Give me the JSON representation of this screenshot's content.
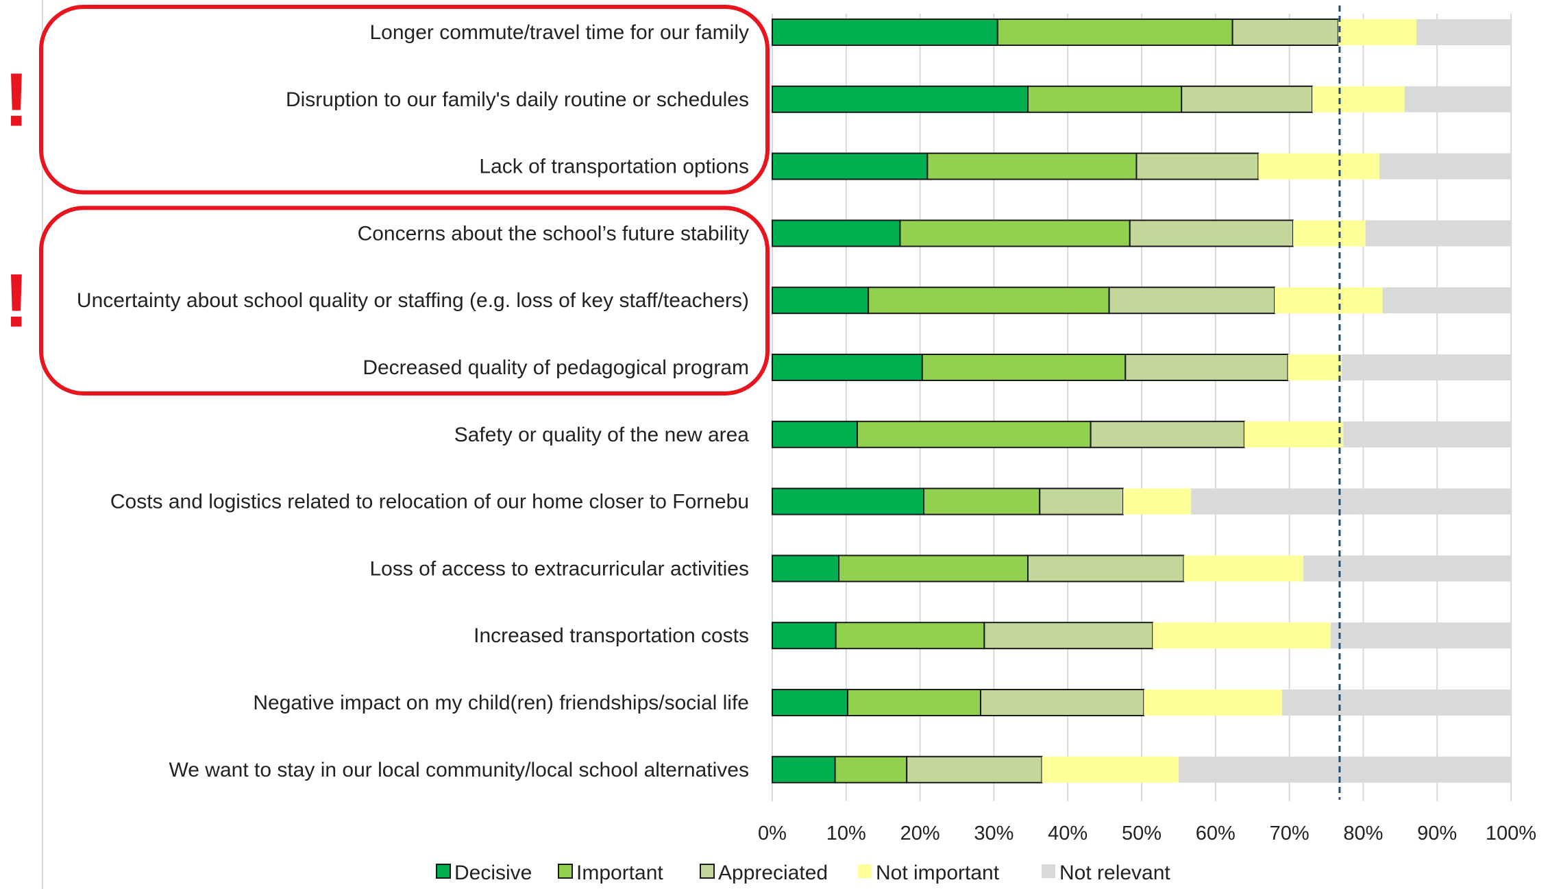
{
  "chart_data": {
    "type": "bar",
    "orientation": "horizontal",
    "stacked": true,
    "normalized": true,
    "categories": [
      "Longer commute/travel time for our family",
      "Disruption to our family's daily routine or schedules",
      "Lack of transportation options",
      "Concerns about the school’s future stability",
      "Uncertainty about school quality or staffing (e.g. loss of key staff/teachers)",
      "Decreased quality of pedagogical program",
      "Safety or quality of the new area",
      "Costs and logistics related to relocation of our home closer to Fornebu",
      "Loss of access to extracurricular activities",
      "Increased transportation costs",
      "Negative impact on my child(ren) friendships/social life",
      "We want to stay in our local community/local school alternatives"
    ],
    "series": [
      {
        "name": "Decisive",
        "color": "#00b050",
        "outlined": true,
        "values": [
          30.5,
          34.6,
          21.0,
          17.3,
          13.0,
          20.3,
          11.5,
          20.5,
          9.0,
          8.6,
          10.2,
          8.5
        ]
      },
      {
        "name": "Important",
        "color": "#92d050",
        "outlined": true,
        "values": [
          31.8,
          20.8,
          28.3,
          31.1,
          32.6,
          27.5,
          31.6,
          15.7,
          25.6,
          20.1,
          18.0,
          9.7
        ]
      },
      {
        "name": "Appreciated",
        "color": "#c4d79b",
        "outlined": true,
        "values": [
          14.3,
          17.7,
          16.5,
          22.1,
          22.4,
          22.0,
          20.8,
          11.3,
          21.1,
          22.8,
          22.1,
          18.3
        ]
      },
      {
        "name": "Not important",
        "color": "#ffff99",
        "outlined": false,
        "values": [
          10.6,
          12.5,
          16.4,
          9.8,
          14.6,
          7.3,
          13.4,
          9.2,
          16.2,
          24.1,
          18.7,
          18.5
        ]
      },
      {
        "name": "Not relevant",
        "color": "#d9d9d9",
        "outlined": false,
        "values": [
          12.8,
          14.4,
          17.8,
          19.7,
          17.4,
          22.9,
          22.7,
          43.3,
          28.1,
          24.4,
          31.0,
          45.0
        ]
      }
    ],
    "xlim": [
      0,
      100
    ],
    "xticks": [
      "0%",
      "10%",
      "20%",
      "30%",
      "40%",
      "50%",
      "60%",
      "70%",
      "80%",
      "90%",
      "100%"
    ],
    "grid": true,
    "legend_position": "bottom",
    "reference_line": {
      "value": 76.8,
      "style": "dashed",
      "color": "#1f4e79"
    },
    "highlight_groups": [
      {
        "categories": [
          0,
          1,
          2
        ],
        "marker": "!",
        "color": "#e8141e"
      },
      {
        "categories": [
          3,
          4,
          5
        ],
        "marker": "!",
        "color": "#e8141e"
      }
    ]
  }
}
